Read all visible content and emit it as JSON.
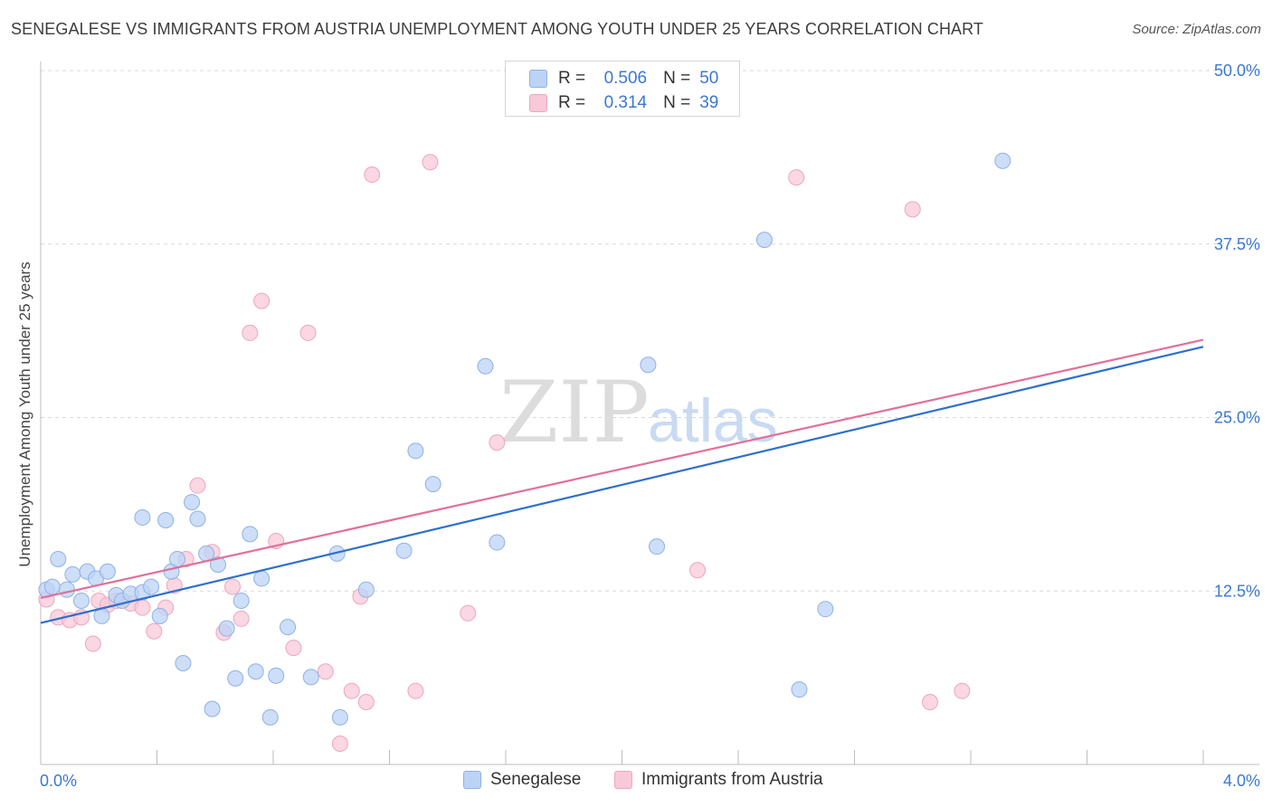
{
  "title": "SENEGALESE VS IMMIGRANTS FROM AUSTRIA UNEMPLOYMENT AMONG YOUTH UNDER 25 YEARS CORRELATION CHART",
  "source": "Source: ZipAtlas.com",
  "watermark": {
    "zip": "ZIP",
    "atlas": "atlas"
  },
  "legend": {
    "r_label": "R =",
    "n_label": "N =",
    "series1": {
      "r": "0.506",
      "n": "50"
    },
    "series2": {
      "r": "0.314",
      "n": "39"
    }
  },
  "bottom_legend": {
    "s1": "Senegalese",
    "s2": "Immigrants from Austria"
  },
  "colors": {
    "blue_fill": "#bcd3f5",
    "blue_stroke": "#8fb1e6",
    "blue_line": "#2f6fcc",
    "pink_fill": "#f8c9d8",
    "pink_stroke": "#eda6be",
    "pink_line": "#e0709a",
    "tick_text": "#3b78d0",
    "grid": "#d8d8d8"
  },
  "chart_data": {
    "type": "scatter",
    "title": "SENEGALESE VS IMMIGRANTS FROM AUSTRIA UNEMPLOYMENT AMONG YOUTH UNDER 25 YEARS CORRELATION CHART",
    "xlabel": "",
    "ylabel": "Unemployment Among Youth under 25 years",
    "xlim": [
      0,
      4.0
    ],
    "ylim": [
      0,
      50.0
    ],
    "x_tick_labels": [
      "0.0%",
      "4.0%"
    ],
    "y_ticks": [
      12.5,
      25.0,
      37.5,
      50.0
    ],
    "y_tick_labels": [
      "12.5%",
      "25.0%",
      "37.5%",
      "50.0%"
    ],
    "grid": true,
    "legend_position": "top-center",
    "series": [
      {
        "name": "Senegalese",
        "R": 0.506,
        "N": 50,
        "trend": {
          "x": [
            0,
            4.0
          ],
          "y": [
            10.2,
            30.1
          ]
        },
        "points": [
          [
            0.02,
            12.6
          ],
          [
            0.04,
            12.8
          ],
          [
            0.06,
            14.8
          ],
          [
            0.09,
            12.6
          ],
          [
            0.11,
            13.7
          ],
          [
            0.14,
            11.8
          ],
          [
            0.16,
            13.9
          ],
          [
            0.19,
            13.4
          ],
          [
            0.21,
            10.7
          ],
          [
            0.23,
            13.9
          ],
          [
            0.26,
            12.2
          ],
          [
            0.28,
            11.8
          ],
          [
            0.31,
            12.3
          ],
          [
            0.35,
            12.4
          ],
          [
            0.35,
            17.8
          ],
          [
            0.38,
            12.8
          ],
          [
            0.41,
            10.7
          ],
          [
            0.43,
            17.6
          ],
          [
            0.45,
            13.9
          ],
          [
            0.47,
            14.8
          ],
          [
            0.49,
            7.3
          ],
          [
            0.52,
            18.9
          ],
          [
            0.54,
            17.7
          ],
          [
            0.57,
            15.2
          ],
          [
            0.59,
            4.0
          ],
          [
            0.61,
            14.4
          ],
          [
            0.64,
            9.8
          ],
          [
            0.67,
            6.2
          ],
          [
            0.69,
            11.8
          ],
          [
            0.72,
            16.6
          ],
          [
            0.74,
            6.7
          ],
          [
            0.76,
            13.4
          ],
          [
            0.79,
            3.4
          ],
          [
            0.81,
            6.4
          ],
          [
            0.85,
            9.9
          ],
          [
            0.93,
            6.3
          ],
          [
            1.02,
            15.2
          ],
          [
            1.03,
            3.4
          ],
          [
            1.12,
            12.6
          ],
          [
            1.25,
            15.4
          ],
          [
            1.29,
            22.6
          ],
          [
            1.35,
            20.2
          ],
          [
            1.53,
            28.7
          ],
          [
            1.57,
            16.0
          ],
          [
            2.09,
            28.8
          ],
          [
            2.12,
            15.7
          ],
          [
            2.49,
            37.8
          ],
          [
            2.61,
            5.4
          ],
          [
            2.7,
            11.2
          ],
          [
            3.31,
            43.5
          ]
        ]
      },
      {
        "name": "Immigrants from Austria",
        "R": 0.314,
        "N": 39,
        "trend": {
          "x": [
            0,
            4.0
          ],
          "y": [
            12.0,
            30.6
          ]
        },
        "points": [
          [
            0.02,
            11.9
          ],
          [
            0.06,
            10.6
          ],
          [
            0.1,
            10.4
          ],
          [
            0.14,
            10.6
          ],
          [
            0.18,
            8.7
          ],
          [
            0.2,
            11.8
          ],
          [
            0.23,
            11.5
          ],
          [
            0.26,
            11.8
          ],
          [
            0.31,
            11.6
          ],
          [
            0.35,
            11.3
          ],
          [
            0.39,
            9.6
          ],
          [
            0.43,
            11.3
          ],
          [
            0.46,
            12.9
          ],
          [
            0.5,
            14.8
          ],
          [
            0.54,
            20.1
          ],
          [
            0.59,
            15.3
          ],
          [
            0.63,
            9.5
          ],
          [
            0.66,
            12.8
          ],
          [
            0.69,
            10.5
          ],
          [
            0.72,
            31.1
          ],
          [
            0.76,
            33.4
          ],
          [
            0.81,
            16.1
          ],
          [
            0.87,
            8.4
          ],
          [
            0.92,
            31.1
          ],
          [
            0.98,
            6.7
          ],
          [
            1.03,
            1.5
          ],
          [
            1.07,
            5.3
          ],
          [
            1.1,
            12.1
          ],
          [
            1.12,
            4.5
          ],
          [
            1.14,
            42.5
          ],
          [
            1.29,
            5.3
          ],
          [
            1.34,
            43.4
          ],
          [
            1.47,
            10.9
          ],
          [
            1.57,
            23.2
          ],
          [
            2.26,
            14.0
          ],
          [
            2.6,
            42.3
          ],
          [
            3.0,
            40.0
          ],
          [
            3.06,
            4.5
          ],
          [
            3.17,
            5.3
          ]
        ]
      }
    ]
  }
}
